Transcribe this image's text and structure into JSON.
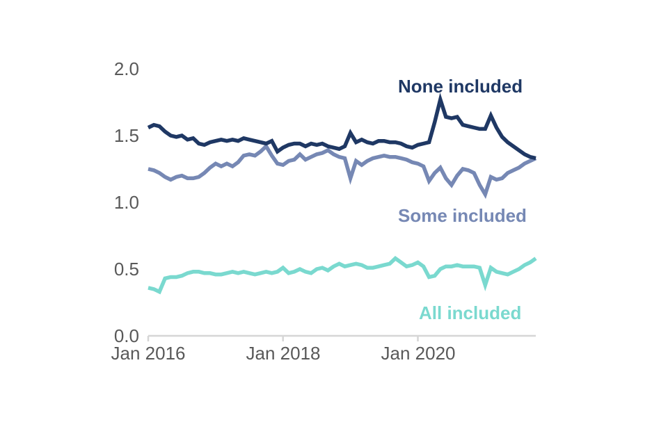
{
  "colors": {
    "background": "#ffffff",
    "axis_text": "#595959",
    "axis_line": "#d6d6d6"
  },
  "chart_data": {
    "type": "line",
    "title": "",
    "x_frequency": "monthly",
    "x_range": [
      "Jan 2016",
      "Oct 2021"
    ],
    "x_tick_labels": [
      "Jan 2016",
      "Jan 2018",
      "Jan 2020"
    ],
    "x_tick_month_indices": [
      0,
      24,
      48
    ],
    "y_tick_labels": [
      "0.0",
      "0.5",
      "1.0",
      "1.5",
      "2.0"
    ],
    "ylim": [
      0.0,
      2.0
    ],
    "grid": false,
    "legend_position": "inline-labels-right",
    "series": [
      {
        "name": "None included",
        "color": "#1f3864",
        "values": [
          1.56,
          1.58,
          1.57,
          1.53,
          1.5,
          1.49,
          1.5,
          1.47,
          1.48,
          1.44,
          1.43,
          1.45,
          1.46,
          1.47,
          1.46,
          1.47,
          1.46,
          1.48,
          1.47,
          1.46,
          1.45,
          1.44,
          1.46,
          1.38,
          1.41,
          1.43,
          1.44,
          1.44,
          1.42,
          1.44,
          1.43,
          1.44,
          1.42,
          1.41,
          1.4,
          1.42,
          1.52,
          1.45,
          1.47,
          1.45,
          1.44,
          1.46,
          1.46,
          1.45,
          1.45,
          1.44,
          1.42,
          1.41,
          1.43,
          1.44,
          1.45,
          1.6,
          1.77,
          1.64,
          1.63,
          1.64,
          1.58,
          1.57,
          1.56,
          1.55,
          1.55,
          1.65,
          1.56,
          1.49,
          1.45,
          1.42,
          1.39,
          1.36,
          1.34,
          1.33
        ]
      },
      {
        "name": "Some included",
        "color": "#7688b4",
        "values": [
          1.25,
          1.24,
          1.22,
          1.19,
          1.17,
          1.19,
          1.2,
          1.18,
          1.18,
          1.19,
          1.22,
          1.26,
          1.29,
          1.27,
          1.29,
          1.27,
          1.3,
          1.35,
          1.36,
          1.35,
          1.38,
          1.42,
          1.35,
          1.29,
          1.28,
          1.31,
          1.32,
          1.36,
          1.32,
          1.34,
          1.36,
          1.37,
          1.39,
          1.36,
          1.34,
          1.33,
          1.18,
          1.31,
          1.28,
          1.31,
          1.33,
          1.34,
          1.35,
          1.34,
          1.34,
          1.33,
          1.32,
          1.3,
          1.29,
          1.27,
          1.16,
          1.22,
          1.26,
          1.18,
          1.13,
          1.2,
          1.25,
          1.24,
          1.22,
          1.13,
          1.06,
          1.19,
          1.17,
          1.18,
          1.22,
          1.24,
          1.26,
          1.29,
          1.31,
          1.33
        ]
      },
      {
        "name": "All included",
        "color": "#7ad9cf",
        "values": [
          0.36,
          0.35,
          0.33,
          0.43,
          0.44,
          0.44,
          0.45,
          0.47,
          0.48,
          0.48,
          0.47,
          0.47,
          0.46,
          0.46,
          0.47,
          0.48,
          0.47,
          0.48,
          0.47,
          0.46,
          0.47,
          0.48,
          0.47,
          0.48,
          0.51,
          0.47,
          0.48,
          0.5,
          0.48,
          0.47,
          0.5,
          0.51,
          0.49,
          0.52,
          0.54,
          0.52,
          0.53,
          0.54,
          0.53,
          0.51,
          0.51,
          0.52,
          0.53,
          0.54,
          0.58,
          0.55,
          0.52,
          0.53,
          0.55,
          0.52,
          0.44,
          0.45,
          0.5,
          0.52,
          0.52,
          0.53,
          0.52,
          0.52,
          0.52,
          0.51,
          0.38,
          0.51,
          0.48,
          0.47,
          0.46,
          0.48,
          0.5,
          0.53,
          0.55,
          0.58
        ]
      }
    ]
  }
}
